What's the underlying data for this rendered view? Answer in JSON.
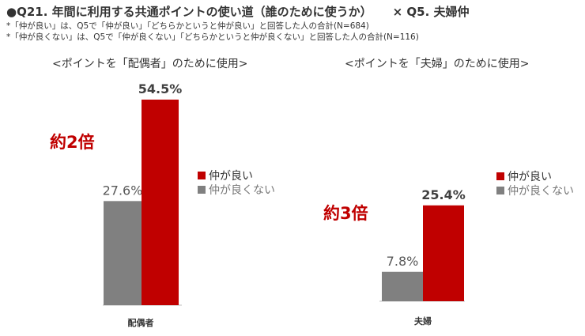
{
  "header": {
    "title_main": "●Q21. 年間に利用する共通ポイントの使い道（誰のために使うか）",
    "title_cross": "× Q5. 夫婦仲",
    "note1": "*「仲が良い」は、Q5で「仲が良い」「どちらかというと仲が良い」と回答した人の合計(N=684)",
    "note2": "*「仲が良くない」は、Q5で「仲が良くない」「どちらかというと仲が良くない」と回答した人の合計(N=116)"
  },
  "colors": {
    "good": "#c00000",
    "bad": "#808080",
    "axis": "#bfbfbf"
  },
  "chart_data": [
    {
      "type": "bar",
      "title": "<ポイントを「配偶者」のために使用>",
      "categories": [
        "配偶者"
      ],
      "series": [
        {
          "name": "仲が良くない",
          "values": [
            27.6
          ],
          "labels": [
            "27.6%"
          ]
        },
        {
          "name": "仲が良い",
          "values": [
            54.5
          ],
          "labels": [
            "54.5%"
          ]
        }
      ],
      "annotation": "約2倍",
      "legend": [
        "仲が良い",
        "仲が良くない"
      ],
      "legend_placement": "right",
      "ylim": [
        0,
        54.5
      ],
      "grid": false
    },
    {
      "type": "bar",
      "title": "<ポイントを「夫婦」のために使用>",
      "categories": [
        "夫婦"
      ],
      "series": [
        {
          "name": "仲が良くない",
          "values": [
            7.8
          ],
          "labels": [
            "7.8%"
          ]
        },
        {
          "name": "仲が良い",
          "values": [
            25.4
          ],
          "labels": [
            "25.4%"
          ]
        }
      ],
      "annotation": "約3倍",
      "legend": [
        "仲が良い",
        "仲が良くない"
      ],
      "legend_placement": "right",
      "ylim": [
        0,
        41.9
      ],
      "grid": false
    }
  ]
}
